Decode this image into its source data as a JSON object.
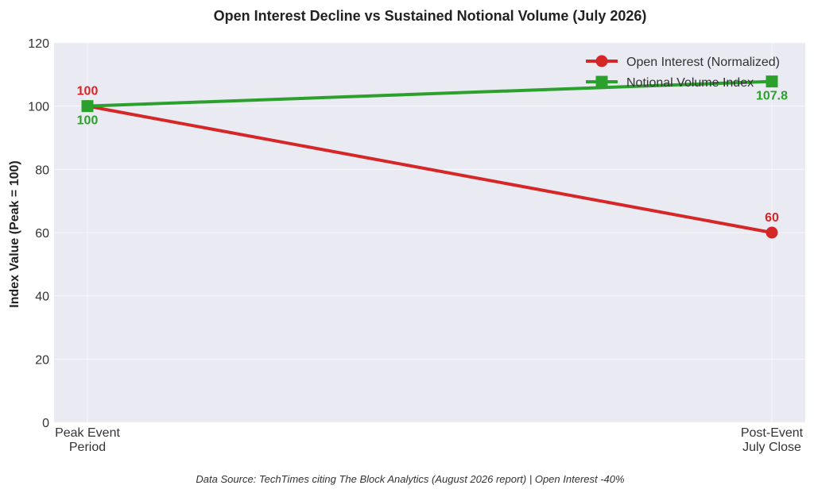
{
  "chart_data": {
    "type": "line",
    "title": "Open Interest Decline vs Sustained Notional Volume (July 2026)",
    "ylabel": "Index Value (Peak = 100)",
    "xlabel": "",
    "categories": [
      [
        "Peak Event",
        "Period"
      ],
      [
        "Post-Event",
        "July Close"
      ]
    ],
    "ylim": [
      0,
      120
    ],
    "yticks": [
      0,
      20,
      40,
      60,
      80,
      100,
      120
    ],
    "grid": true,
    "legend_position": "top-right",
    "series": [
      {
        "name": "Open Interest (Normalized)",
        "values": [
          100,
          60
        ],
        "labels": [
          "100",
          "60"
        ],
        "color": "#d62728",
        "marker": "circle"
      },
      {
        "name": "Notional Volume Index",
        "values": [
          100,
          107.8
        ],
        "labels": [
          "100",
          "107.8"
        ],
        "color": "#2ca02c",
        "marker": "square"
      }
    ],
    "source": "Data Source: TechTimes citing The Block Analytics (August 2026 report) | Open Interest -40%",
    "background_color": "#eaeaf2",
    "grid_color": "#f7f7fa"
  }
}
